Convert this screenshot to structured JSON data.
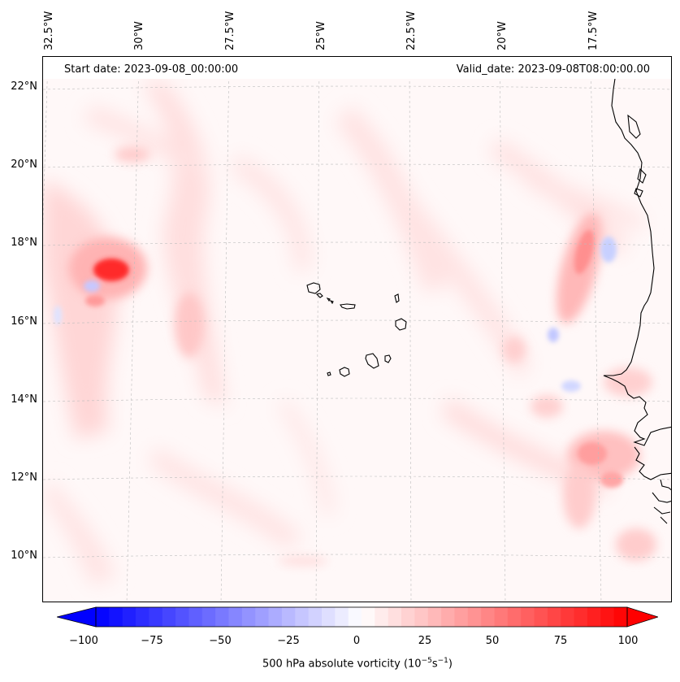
{
  "header": {
    "start_date": "Start date: 2023-09-08_00:00:00",
    "valid_date": "Valid_date: 2023-09-08T08:00:00.00"
  },
  "axes": {
    "lon_labels": [
      "32.5°W",
      "30°W",
      "27.5°W",
      "25°W",
      "22.5°W",
      "20°W",
      "17.5°W"
    ],
    "lat_labels": [
      "22°N",
      "20°N",
      "18°N",
      "16°N",
      "14°N",
      "12°N",
      "10°N"
    ]
  },
  "colorbar": {
    "ticks": [
      "−100",
      "−75",
      "−50",
      "−25",
      "0",
      "25",
      "50",
      "75",
      "100"
    ],
    "title": "500 hPa absolute vorticity (10",
    "title_exp1": "−5",
    "title_mid": "s",
    "title_exp2": "−1",
    "title_end": ")",
    "min": -100,
    "max": 100,
    "neg_color": "#0000ff",
    "pos_color": "#ff0000"
  },
  "map_features": {
    "coastline": "West Africa",
    "islands": "Cape Verde",
    "coastline_color": "#000000",
    "gridline_color": "#bdbdbd"
  }
}
